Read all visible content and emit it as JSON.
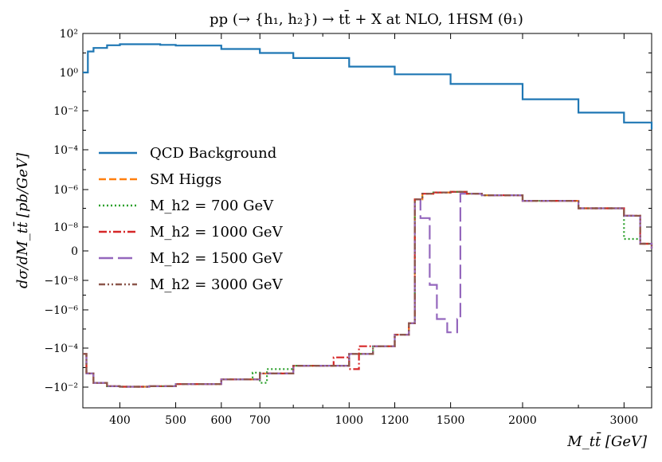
{
  "chart_data": {
    "type": "line",
    "title": "pp (→ {h₁, h₂}) → tt̄ + X at NLO,    1HSM (θ₁)",
    "xlabel": "M_tt̄ [GeV]",
    "ylabel": "dσ/dM_tt̄ [pb/GeV]",
    "x_scale": "log",
    "y_scale": "symlog",
    "xlim": [
      345,
      3350
    ],
    "x_ticks": [
      400,
      500,
      600,
      700,
      1000,
      1200,
      1500,
      2000,
      3000
    ],
    "x_tick_labels": [
      "400",
      "500",
      "600",
      "700",
      "1000",
      "1200",
      "1500",
      "2000",
      "3000"
    ],
    "y_ticks": [
      {
        "value": 100,
        "label": "10²"
      },
      {
        "value": 1,
        "label": "10⁰"
      },
      {
        "value": 0.01,
        "label": "10⁻²"
      },
      {
        "value": 0.0001,
        "label": "10⁻⁴"
      },
      {
        "value": 1e-06,
        "label": "10⁻⁶"
      },
      {
        "value": 1e-08,
        "label": "10⁻⁸"
      },
      {
        "value": 0,
        "label": "0"
      },
      {
        "value": -1e-08,
        "label": "−10⁻⁸"
      },
      {
        "value": -1e-06,
        "label": "−10⁻⁶"
      },
      {
        "value": -0.0001,
        "label": "−10⁻⁴"
      },
      {
        "value": -0.01,
        "label": "−10⁻²"
      }
    ],
    "legend_position": "center-left",
    "series": [
      {
        "name": "QCD Background",
        "color": "#1f77b4",
        "dash": "solid",
        "points": [
          [
            345,
            1.0
          ],
          [
            352,
            12
          ],
          [
            360,
            18
          ],
          [
            380,
            25
          ],
          [
            400,
            28
          ],
          [
            430,
            28
          ],
          [
            470,
            26
          ],
          [
            500,
            24
          ],
          [
            600,
            16
          ],
          [
            700,
            10
          ],
          [
            800,
            5.5
          ],
          [
            1000,
            2.0
          ],
          [
            1200,
            0.8
          ],
          [
            1500,
            0.25
          ],
          [
            2000,
            0.04
          ],
          [
            2500,
            0.008
          ],
          [
            3000,
            0.0025
          ],
          [
            3350,
            0.0011
          ]
        ]
      },
      {
        "name": "SM Higgs",
        "color": "#ff7f0e",
        "dash": "dashed",
        "points": [
          [
            345,
            -0.0002
          ],
          [
            350,
            -0.002
          ],
          [
            360,
            -0.006
          ],
          [
            380,
            -0.009
          ],
          [
            400,
            -0.0095
          ],
          [
            450,
            -0.009
          ],
          [
            500,
            -0.007
          ],
          [
            600,
            -0.004
          ],
          [
            700,
            -0.002
          ],
          [
            800,
            -0.0008
          ],
          [
            1000,
            -0.0002
          ],
          [
            1100,
            -8e-05
          ],
          [
            1200,
            -2e-05
          ],
          [
            1270,
            -5e-06
          ],
          [
            1300,
            3e-07
          ],
          [
            1340,
            6e-07
          ],
          [
            1400,
            7e-07
          ],
          [
            1500,
            7.5e-07
          ],
          [
            1600,
            6e-07
          ],
          [
            1700,
            5e-07
          ],
          [
            2000,
            2.5e-07
          ],
          [
            2500,
            1e-07
          ],
          [
            3000,
            4e-08
          ],
          [
            3200,
            3e-09
          ],
          [
            3350,
            1e-09
          ]
        ]
      },
      {
        "name": "M_h2 = 700 GeV",
        "color": "#2ca02c",
        "dash": "dotted",
        "points": [
          [
            345,
            -0.0002
          ],
          [
            350,
            -0.002
          ],
          [
            360,
            -0.006
          ],
          [
            380,
            -0.009
          ],
          [
            400,
            -0.0095
          ],
          [
            450,
            -0.009
          ],
          [
            500,
            -0.007
          ],
          [
            600,
            -0.004
          ],
          [
            680,
            -0.0018
          ],
          [
            700,
            -0.006
          ],
          [
            720,
            -0.0012
          ],
          [
            800,
            -0.0008
          ],
          [
            1000,
            -0.0002
          ],
          [
            1100,
            -8e-05
          ],
          [
            1200,
            -2e-05
          ],
          [
            1270,
            -5e-06
          ],
          [
            1300,
            3e-07
          ],
          [
            1340,
            6e-07
          ],
          [
            1400,
            7e-07
          ],
          [
            1500,
            7.5e-07
          ],
          [
            1600,
            6e-07
          ],
          [
            1700,
            5e-07
          ],
          [
            2000,
            2.5e-07
          ],
          [
            2500,
            1e-07
          ],
          [
            3000,
            5e-09
          ],
          [
            3200,
            3e-09
          ],
          [
            3350,
            1e-09
          ]
        ]
      },
      {
        "name": "M_h2 = 1000 GeV",
        "color": "#d62728",
        "dash": "dashdot",
        "points": [
          [
            345,
            -0.0002
          ],
          [
            350,
            -0.002
          ],
          [
            360,
            -0.006
          ],
          [
            380,
            -0.009
          ],
          [
            400,
            -0.0095
          ],
          [
            450,
            -0.009
          ],
          [
            500,
            -0.007
          ],
          [
            600,
            -0.004
          ],
          [
            700,
            -0.002
          ],
          [
            800,
            -0.0008
          ],
          [
            940,
            -0.0003
          ],
          [
            1000,
            -0.0012
          ],
          [
            1040,
            -8e-05
          ],
          [
            1100,
            -8e-05
          ],
          [
            1200,
            -2e-05
          ],
          [
            1270,
            -5e-06
          ],
          [
            1300,
            3e-07
          ],
          [
            1340,
            6e-07
          ],
          [
            1400,
            7e-07
          ],
          [
            1500,
            7.5e-07
          ],
          [
            1600,
            6e-07
          ],
          [
            1700,
            5e-07
          ],
          [
            2000,
            2.5e-07
          ],
          [
            2500,
            1e-07
          ],
          [
            3000,
            4e-08
          ],
          [
            3200,
            3e-09
          ],
          [
            3350,
            1e-09
          ]
        ]
      },
      {
        "name": "M_h2 = 1500 GeV",
        "color": "#9467bd",
        "dash": "longdash",
        "points": [
          [
            345,
            -0.0002
          ],
          [
            350,
            -0.002
          ],
          [
            360,
            -0.006
          ],
          [
            380,
            -0.009
          ],
          [
            400,
            -0.0095
          ],
          [
            450,
            -0.009
          ],
          [
            500,
            -0.007
          ],
          [
            600,
            -0.004
          ],
          [
            700,
            -0.002
          ],
          [
            800,
            -0.0008
          ],
          [
            1000,
            -0.0002
          ],
          [
            1100,
            -8e-05
          ],
          [
            1200,
            -2e-05
          ],
          [
            1270,
            -5e-06
          ],
          [
            1300,
            3e-07
          ],
          [
            1330,
            3e-08
          ],
          [
            1380,
            -2e-08
          ],
          [
            1420,
            -3e-06
          ],
          [
            1480,
            -1.5e-05
          ],
          [
            1540,
            -3e-06
          ],
          [
            1560,
            6e-07
          ],
          [
            1600,
            6e-07
          ],
          [
            1700,
            5e-07
          ],
          [
            2000,
            2.5e-07
          ],
          [
            2500,
            1e-07
          ],
          [
            3000,
            4e-08
          ],
          [
            3200,
            3e-09
          ],
          [
            3350,
            1e-09
          ]
        ]
      },
      {
        "name": "M_h2 = 3000 GeV",
        "color": "#8c564b",
        "dash": "dashdotdot",
        "points": [
          [
            345,
            -0.0002
          ],
          [
            350,
            -0.002
          ],
          [
            360,
            -0.006
          ],
          [
            380,
            -0.009
          ],
          [
            400,
            -0.0095
          ],
          [
            450,
            -0.009
          ],
          [
            500,
            -0.007
          ],
          [
            600,
            -0.004
          ],
          [
            700,
            -0.002
          ],
          [
            800,
            -0.0008
          ],
          [
            1000,
            -0.0002
          ],
          [
            1100,
            -8e-05
          ],
          [
            1200,
            -2e-05
          ],
          [
            1270,
            -5e-06
          ],
          [
            1300,
            3e-07
          ],
          [
            1340,
            6e-07
          ],
          [
            1400,
            7e-07
          ],
          [
            1500,
            7.5e-07
          ],
          [
            1600,
            6e-07
          ],
          [
            1700,
            5e-07
          ],
          [
            2000,
            2.5e-07
          ],
          [
            2500,
            1e-07
          ],
          [
            3000,
            4e-08
          ],
          [
            3200,
            3e-09
          ],
          [
            3350,
            1e-09
          ]
        ]
      }
    ]
  }
}
